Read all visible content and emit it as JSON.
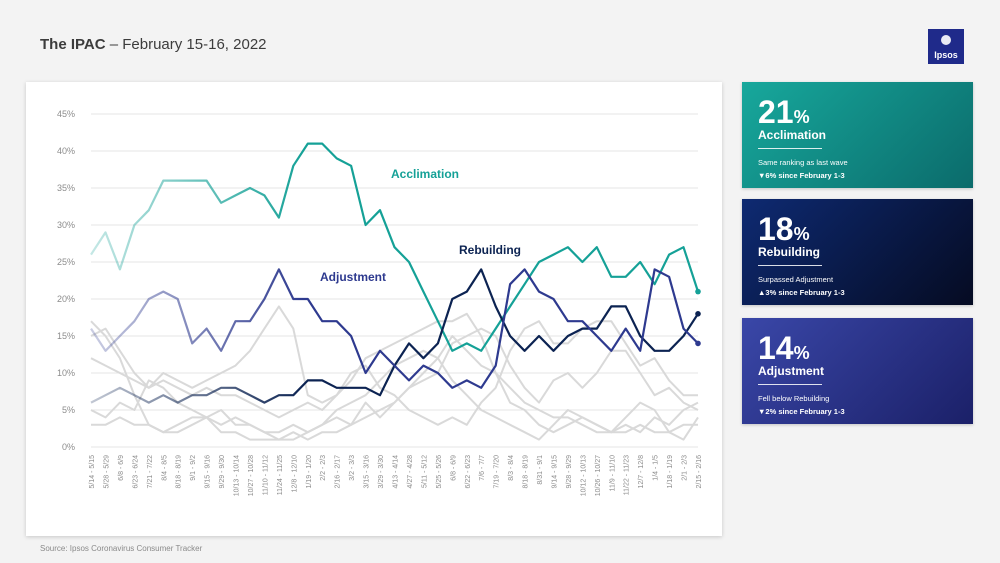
{
  "header": {
    "title_bold": "The IPAC",
    "title_rest": " – February 15-16, 2022"
  },
  "logo": {
    "text": "Ipsos",
    "color": "#1f2a8a"
  },
  "source": "Source: Ipsos Coronavirus Consumer Tracker",
  "kpis": [
    {
      "value": "21",
      "pct": "%",
      "label": "Acclimation",
      "note1": "Same ranking as last wave",
      "note2": "▼6% since February 1-3"
    },
    {
      "value": "18",
      "pct": "%",
      "label": "Rebuilding",
      "note1": "Surpassed Adjustment",
      "note2": "▲3% since February 1-3"
    },
    {
      "value": "14",
      "pct": "%",
      "label": "Adjustment",
      "note1": "Fell below Rebuilding",
      "note2": "▼2% since February 1-3"
    }
  ],
  "chart_data": {
    "type": "line",
    "ylim": [
      0,
      45
    ],
    "yticks": [
      "0%",
      "5%",
      "10%",
      "15%",
      "20%",
      "25%",
      "30%",
      "35%",
      "40%",
      "45%"
    ],
    "categories": [
      "5/14 - 5/15",
      "5/28 - 5/29",
      "6/8 - 6/9",
      "6/23 - 6/24",
      "7/21 - 7/22",
      "8/4 - 8/5",
      "8/18 - 8/19",
      "9/1 - 9/2",
      "9/15 - 9/16",
      "9/29 - 9/30",
      "10/13 - 10/14",
      "10/27 - 10/28",
      "11/10 - 11/12",
      "11/24 - 11/25",
      "12/8 - 12/10",
      "1/19 - 1/20",
      "2/2 - 2/3",
      "2/16 - 2/17",
      "3/2 - 3/3",
      "3/15 - 3/16",
      "3/29 - 3/30",
      "4/13 - 4/14",
      "4/27 - 4/28",
      "5/11 - 5/12",
      "5/25 - 5/26",
      "6/8 - 6/9",
      "6/22 - 6/23",
      "7/6 - 7/7",
      "7/19 - 7/20",
      "8/3 - 8/4",
      "8/18 - 8/19",
      "8/31 - 9/1",
      "9/14 - 9/15",
      "9/28 - 9/29",
      "10/12 - 10/13",
      "10/26 - 10/27",
      "11/9 - 11/10",
      "11/22 - 11/23",
      "12/7 - 12/8",
      "1/4 - 1/5",
      "1/18 - 1/19",
      "2/1 - 2/3",
      "2/15 - 2/16"
    ],
    "series": [
      {
        "name": "Acclimation",
        "color": "#15a197",
        "values": [
          26,
          29,
          24,
          30,
          32,
          36,
          36,
          36,
          36,
          33,
          34,
          35,
          34,
          31,
          38,
          41,
          41,
          39,
          38,
          30,
          32,
          27,
          25,
          21,
          17,
          13,
          14,
          13,
          16,
          19,
          22,
          25,
          26,
          27,
          25,
          27,
          23,
          23,
          25,
          22,
          26,
          27,
          21
        ]
      },
      {
        "name": "Rebuilding",
        "color": "#0c2352",
        "values": [
          6,
          7,
          8,
          7,
          6,
          7,
          6,
          7,
          7,
          8,
          8,
          7,
          6,
          7,
          7,
          9,
          9,
          8,
          8,
          8,
          7,
          11,
          14,
          12,
          14,
          20,
          21,
          24,
          19,
          15,
          13,
          15,
          13,
          15,
          16,
          16,
          19,
          19,
          15,
          13,
          13,
          15,
          18
        ]
      },
      {
        "name": "Adjustment",
        "color": "#2e3a8f",
        "values": [
          16,
          13,
          15,
          17,
          20,
          21,
          20,
          14,
          16,
          13,
          17,
          17,
          20,
          24,
          20,
          20,
          17,
          17,
          15,
          10,
          13,
          11,
          9,
          11,
          10,
          8,
          9,
          8,
          11,
          22,
          24,
          21,
          20,
          17,
          17,
          15,
          13,
          16,
          13,
          24,
          23,
          16,
          14
        ]
      }
    ],
    "background_series": [
      [
        17,
        15,
        12,
        7,
        3,
        2,
        3,
        4,
        4,
        3,
        4,
        3,
        2,
        2,
        3,
        2,
        3,
        4,
        3,
        6,
        4,
        6,
        8,
        9,
        10,
        14,
        15,
        16,
        15,
        11,
        8,
        6,
        9,
        10,
        8,
        10,
        13,
        13,
        10,
        7,
        8,
        6,
        5
      ],
      [
        15,
        16,
        13,
        10,
        8,
        10,
        9,
        8,
        9,
        10,
        11,
        13,
        16,
        19,
        16,
        7,
        6,
        7,
        10,
        11,
        8,
        7,
        5,
        4,
        3,
        4,
        3,
        6,
        8,
        13,
        16,
        17,
        14,
        14,
        16,
        17,
        17,
        14,
        11,
        12,
        9,
        7,
        7
      ],
      [
        12,
        11,
        10,
        9,
        8,
        9,
        8,
        7,
        8,
        7,
        7,
        6,
        5,
        4,
        5,
        6,
        5,
        7,
        9,
        12,
        13,
        14,
        15,
        16,
        17,
        17,
        18,
        15,
        10,
        6,
        5,
        3,
        2,
        3,
        4,
        3,
        2,
        3,
        2,
        4,
        3,
        5,
        6
      ],
      [
        5,
        4,
        6,
        5,
        9,
        8,
        6,
        5,
        4,
        5,
        3,
        3,
        2,
        1,
        1,
        2,
        3,
        5,
        6,
        7,
        9,
        11,
        12,
        13,
        12,
        9,
        7,
        5,
        4,
        3,
        2,
        1,
        3,
        5,
        4,
        3,
        2,
        4,
        6,
        5,
        2,
        1,
        4
      ],
      [
        3,
        3,
        4,
        3,
        3,
        2,
        2,
        3,
        4,
        2,
        2,
        1,
        1,
        1,
        2,
        1,
        2,
        2,
        3,
        4,
        5,
        6,
        8,
        10,
        12,
        15,
        13,
        11,
        10,
        8,
        6,
        5,
        4,
        4,
        3,
        2,
        2,
        2,
        3,
        2,
        2,
        3,
        3
      ]
    ],
    "annotations": [
      {
        "text": "Acclimation",
        "series": "Acclimation"
      },
      {
        "text": "Rebuilding",
        "series": "Rebuilding"
      },
      {
        "text": "Adjustment",
        "series": "Adjustment"
      }
    ]
  }
}
